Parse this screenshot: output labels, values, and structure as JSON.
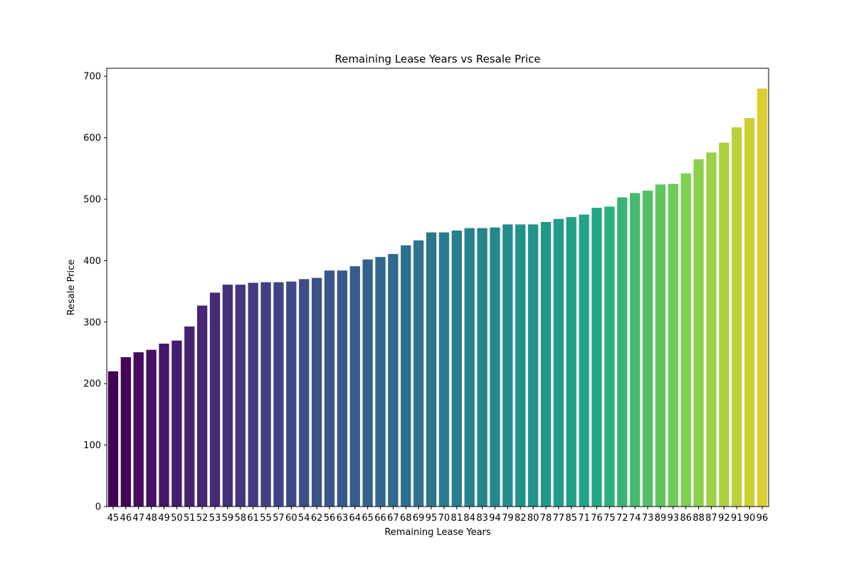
{
  "chart_data": {
    "type": "bar",
    "title": "Remaining Lease Years vs Resale Price",
    "xlabel": "Remaining Lease Years",
    "ylabel": "Resale Price",
    "categories": [
      "45",
      "46",
      "47",
      "48",
      "49",
      "50",
      "51",
      "52",
      "53",
      "59",
      "58",
      "61",
      "55",
      "57",
      "60",
      "54",
      "62",
      "56",
      "63",
      "64",
      "65",
      "66",
      "67",
      "68",
      "69",
      "95",
      "70",
      "81",
      "84",
      "83",
      "94",
      "79",
      "82",
      "80",
      "78",
      "77",
      "85",
      "71",
      "76",
      "75",
      "72",
      "74",
      "73",
      "89",
      "93",
      "86",
      "88",
      "87",
      "92",
      "91",
      "90",
      "96"
    ],
    "values": [
      220,
      243,
      251,
      255,
      265,
      270,
      293,
      327,
      348,
      361,
      361,
      364,
      365,
      365,
      366,
      370,
      372,
      384,
      384,
      391,
      402,
      406,
      411,
      425,
      433,
      446,
      446,
      449,
      453,
      453,
      454,
      459,
      459,
      459,
      463,
      468,
      471,
      475,
      486,
      488,
      503,
      510,
      514,
      524,
      525,
      542,
      565,
      576,
      592,
      617,
      632,
      680
    ],
    "ylim": [
      0,
      713
    ],
    "yticks": [
      0,
      100,
      200,
      300,
      400,
      500,
      600,
      700
    ],
    "grid": false,
    "colormap": "viridis"
  }
}
